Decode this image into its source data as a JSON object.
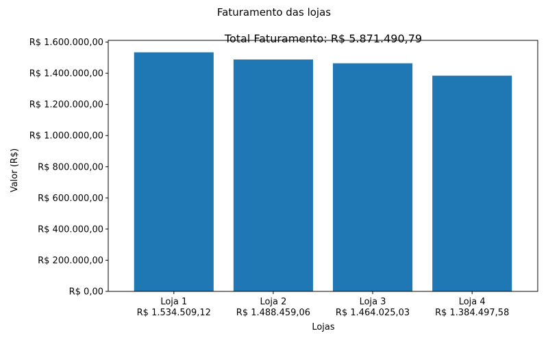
{
  "chart_data": {
    "type": "bar",
    "suptitle": "Faturamento das lojas",
    "title": "Total Faturamento: R$ 5.871.490,79",
    "xlabel": "Lojas",
    "ylabel": "Valor (R$)",
    "categories": [
      "Loja 1",
      "Loja 2",
      "Loja 3",
      "Loja 4"
    ],
    "category_value_labels": [
      "R$ 1.534.509,12",
      "R$ 1.488.459,06",
      "R$ 1.464.025,03",
      "R$ 1.384.497,58"
    ],
    "values": [
      1534509.12,
      1488459.06,
      1464025.03,
      1384497.58
    ],
    "ylim": [
      0,
      1611234.58
    ],
    "yticks": [
      0,
      200000,
      400000,
      600000,
      800000,
      1000000,
      1200000,
      1400000,
      1600000
    ],
    "ytick_labels": [
      "R$ 0,00",
      "R$ 200.000,00",
      "R$ 400.000,00",
      "R$ 600.000,00",
      "R$ 800.000,00",
      "R$ 1.000.000,00",
      "R$ 1.200.000,00",
      "R$ 1.400.000,00",
      "R$ 1.600.000,00"
    ],
    "bar_color": "#1f77b4",
    "grid": false,
    "legend": "none"
  }
}
